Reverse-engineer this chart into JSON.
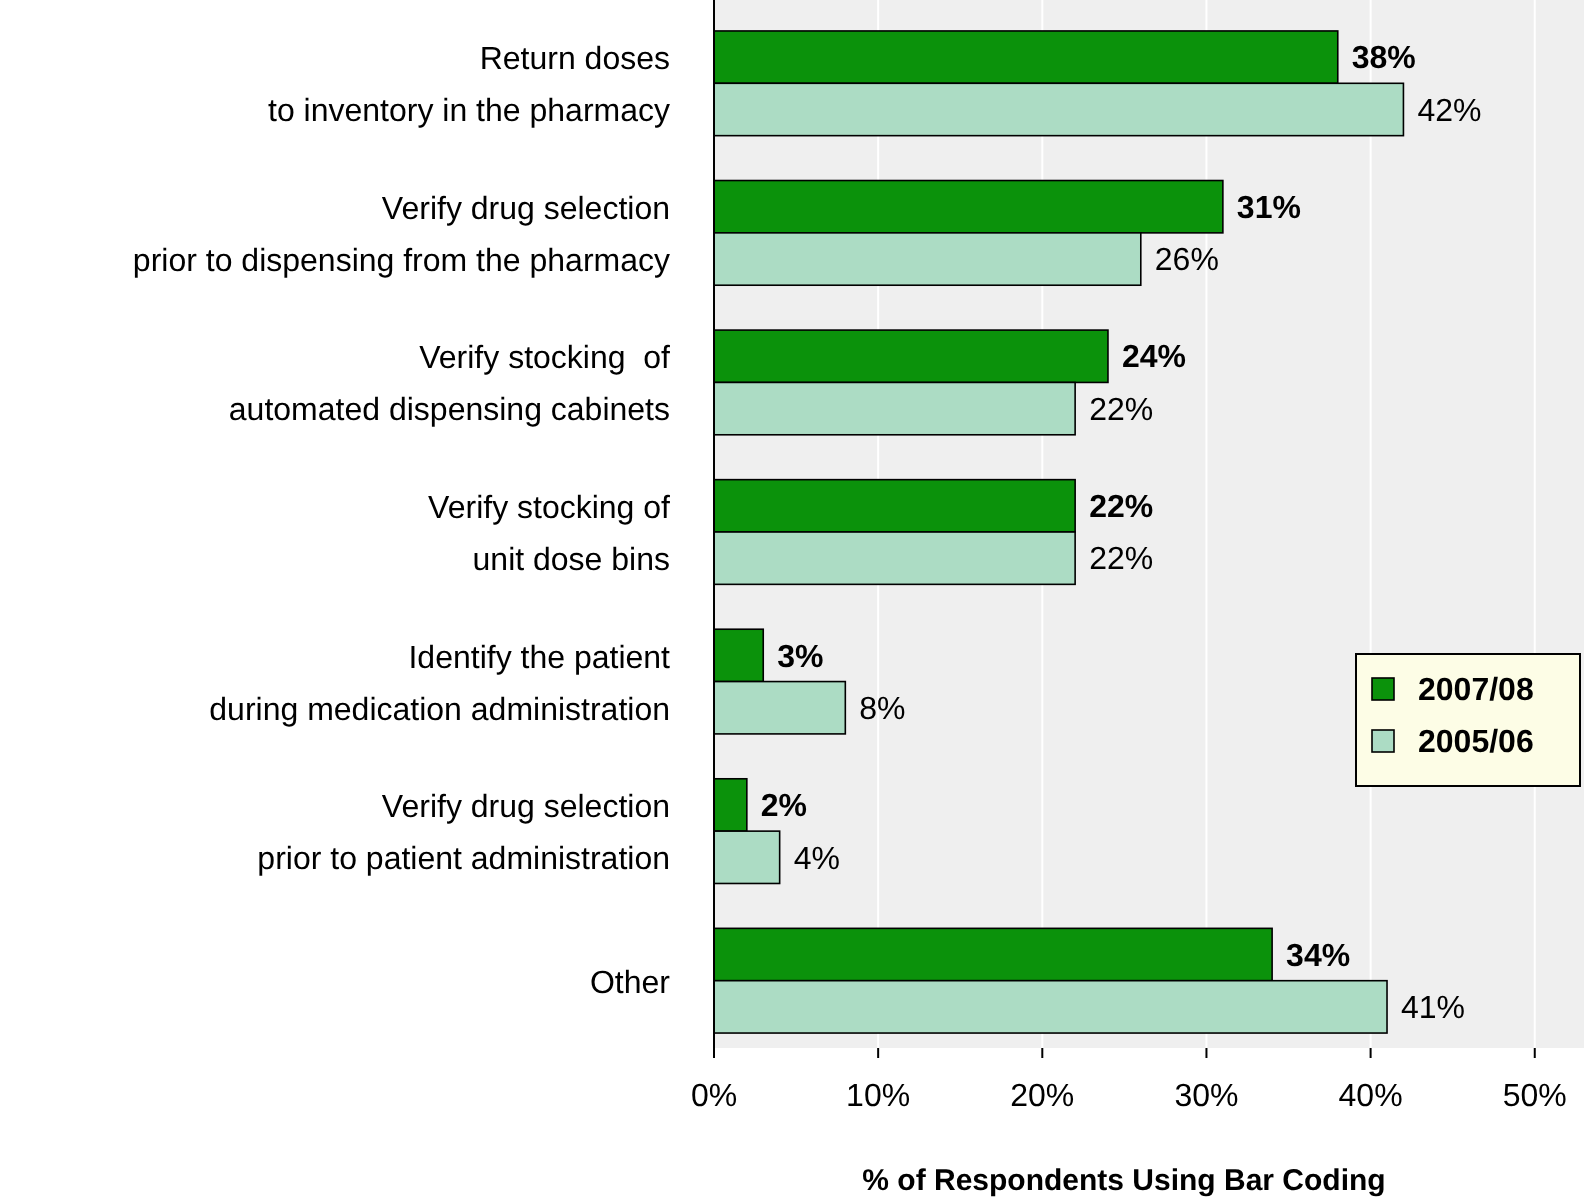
{
  "chart_data": {
    "type": "bar",
    "orientation": "horizontal",
    "xlabel": "% of Respondents Using Bar Coding",
    "categories": [
      "Return doses\nto inventory in the pharmacy",
      "Verify drug selection\nprior to dispensing from the pharmacy",
      "Verify stocking  of\nautomated dispensing cabinets",
      "Verify stocking of\nunit dose bins",
      "Identify the patient\nduring medication administration",
      "Verify drug selection\nprior to patient administration",
      "Other"
    ],
    "series": [
      {
        "name": "2007/08",
        "color": "#0b920b",
        "values": [
          38,
          31,
          24,
          22,
          3,
          2,
          34
        ],
        "value_labels": [
          "38%",
          "31%",
          "24%",
          "22%",
          "3%",
          "2%",
          "34%"
        ]
      },
      {
        "name": "2005/06",
        "color": "#acdcc4",
        "values": [
          42,
          26,
          22,
          22,
          8,
          4,
          41
        ],
        "value_labels": [
          "42%",
          "26%",
          "22%",
          "22%",
          "8%",
          "4%",
          "41%"
        ]
      }
    ],
    "xlim": [
      0,
      53
    ],
    "xticks": [
      {
        "value": 0,
        "label": "0%"
      },
      {
        "value": 10,
        "label": "10%"
      },
      {
        "value": 20,
        "label": "20%"
      },
      {
        "value": 30,
        "label": "30%"
      },
      {
        "value": 40,
        "label": "40%"
      },
      {
        "value": 50,
        "label": "50%"
      }
    ],
    "grid": "x",
    "legend": "right"
  }
}
